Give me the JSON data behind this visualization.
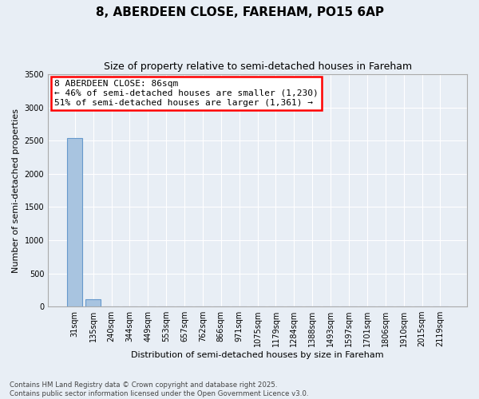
{
  "title_line1": "8, ABERDEEN CLOSE, FAREHAM, PO15 6AP",
  "title_line2": "Size of property relative to semi-detached houses in Fareham",
  "xlabel": "Distribution of semi-detached houses by size in Fareham",
  "ylabel": "Number of semi-detached properties",
  "annotation_line1": "8 ABERDEEN CLOSE: 86sqm",
  "annotation_line2": "← 46% of semi-detached houses are smaller (1,230)",
  "annotation_line3": "51% of semi-detached houses are larger (1,361) →",
  "footer_line1": "Contains HM Land Registry data © Crown copyright and database right 2025.",
  "footer_line2": "Contains public sector information licensed under the Open Government Licence v3.0.",
  "bin_labels": [
    "31sqm",
    "135sqm",
    "240sqm",
    "344sqm",
    "449sqm",
    "553sqm",
    "657sqm",
    "762sqm",
    "866sqm",
    "971sqm",
    "1075sqm",
    "1179sqm",
    "1284sqm",
    "1388sqm",
    "1493sqm",
    "1597sqm",
    "1701sqm",
    "1806sqm",
    "1910sqm",
    "2015sqm",
    "2119sqm"
  ],
  "bar_values": [
    2540,
    110,
    0,
    0,
    0,
    0,
    0,
    0,
    0,
    0,
    0,
    0,
    0,
    0,
    0,
    0,
    0,
    0,
    0,
    0,
    0
  ],
  "bar_color": "#a8c4e0",
  "bar_edge_color": "#6699cc",
  "background_color": "#e8eef5",
  "grid_color": "#ffffff",
  "ylim": [
    0,
    3500
  ],
  "yticks": [
    0,
    500,
    1000,
    1500,
    2000,
    2500,
    3000,
    3500
  ]
}
